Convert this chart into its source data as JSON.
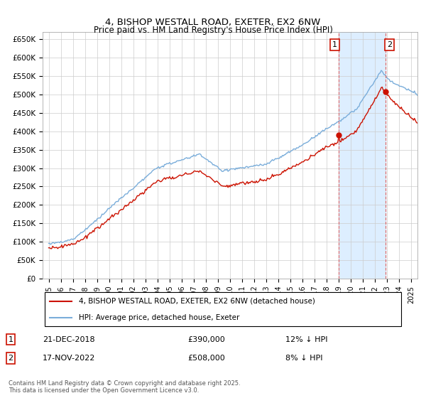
{
  "title": "4, BISHOP WESTALL ROAD, EXETER, EX2 6NW",
  "subtitle": "Price paid vs. HM Land Registry's House Price Index (HPI)",
  "ylabel_ticks": [
    "£0",
    "£50K",
    "£100K",
    "£150K",
    "£200K",
    "£250K",
    "£300K",
    "£350K",
    "£400K",
    "£450K",
    "£500K",
    "£550K",
    "£600K",
    "£650K"
  ],
  "ytick_values": [
    0,
    50000,
    100000,
    150000,
    200000,
    250000,
    300000,
    350000,
    400000,
    450000,
    500000,
    550000,
    600000,
    650000
  ],
  "legend1": "4, BISHOP WESTALL ROAD, EXETER, EX2 6NW (detached house)",
  "legend2": "HPI: Average price, detached house, Exeter",
  "annotation1_label": "1",
  "annotation1_date": "21-DEC-2018",
  "annotation1_price": "£390,000",
  "annotation1_hpi": "12% ↓ HPI",
  "annotation2_label": "2",
  "annotation2_date": "17-NOV-2022",
  "annotation2_price": "£508,000",
  "annotation2_hpi": "8% ↓ HPI",
  "footer": "Contains HM Land Registry data © Crown copyright and database right 2025.\nThis data is licensed under the Open Government Licence v3.0.",
  "sale1_x": 2018.97,
  "sale1_y": 390000,
  "sale2_x": 2022.88,
  "sale2_y": 508000,
  "vline1_x": 2018.97,
  "vline2_x": 2022.88,
  "hpi_color": "#7aadda",
  "price_color": "#cc1100",
  "vline_color": "#dd6666",
  "shade_color": "#ddeeff",
  "background_color": "#ffffff",
  "grid_color": "#cccccc",
  "xlim": [
    1994.5,
    2025.5
  ],
  "ylim": [
    0,
    670000
  ]
}
